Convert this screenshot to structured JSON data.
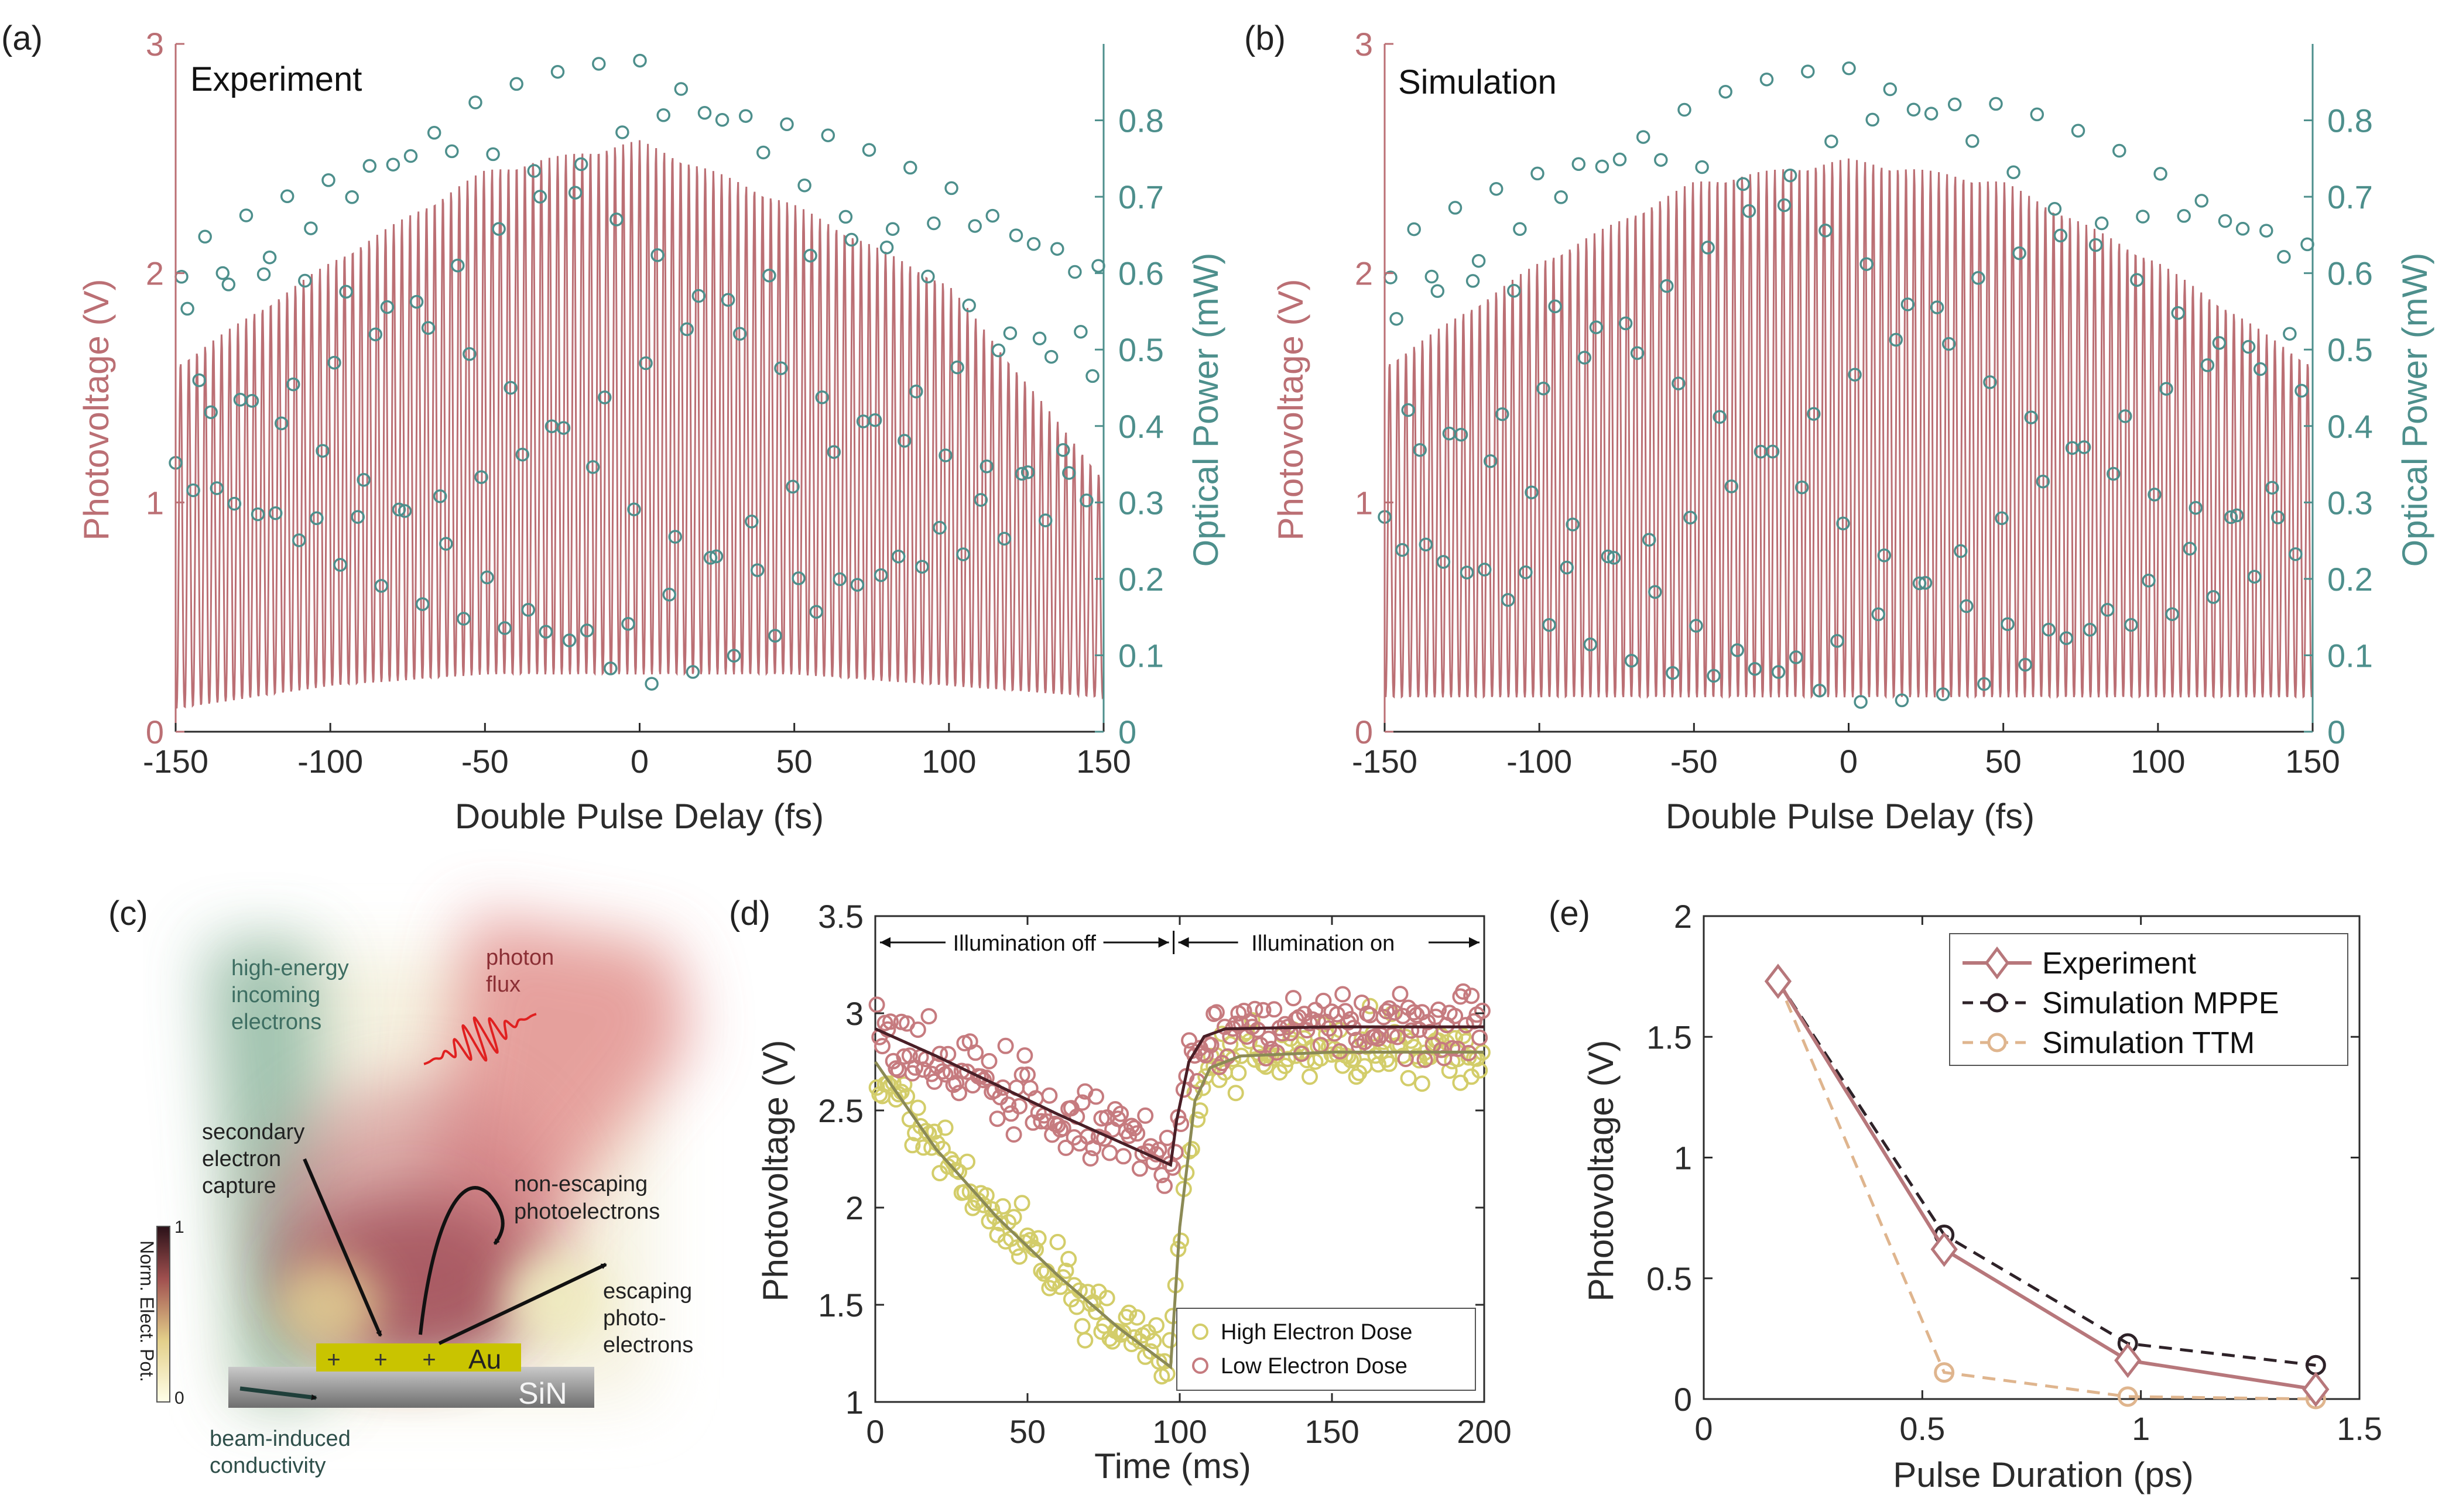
{
  "colors": {
    "photovoltage": "#bb6f74",
    "optical": "#4d8f8c",
    "axis": "#2b2b2b",
    "high_dose": "#d3cd6a",
    "high_dose_fit": "#8b8a55",
    "low_dose": "#c67b7f",
    "low_dose_fit": "#4a1f27",
    "experiment": "#b7777b",
    "mppe": "#2e2228",
    "ttm": "#dfb58e"
  },
  "panel_labels": {
    "a": "(a)",
    "b": "(b)",
    "c": "(c)",
    "d": "(d)",
    "e": "(e)"
  },
  "chart_data": [
    {
      "id": "a",
      "type": "line+scatter",
      "title": "Experiment",
      "xlabel": "Double Pulse Delay (fs)",
      "ylabel_left": "Photovoltage (V)",
      "ylabel_right": "Optical Power (mW)",
      "xlim": [
        -150,
        150
      ],
      "ylim_left": [
        0,
        3
      ],
      "ylim_right": [
        0,
        0.9
      ],
      "xticks": [
        "-150",
        "-100",
        "-50",
        "0",
        "50",
        "100",
        "150"
      ],
      "yticks_left": [
        "0",
        "1",
        "2",
        "3"
      ],
      "yticks_right": [
        "0",
        "0.1",
        "0.2",
        "0.3",
        "0.4",
        "0.5",
        "0.6",
        "0.7",
        "0.8"
      ],
      "oscillation_period_fs": 2.65,
      "photovoltage_envelope": {
        "x": [
          -150,
          -100,
          -50,
          0,
          50,
          100,
          150
        ],
        "max": [
          1.6,
          2.05,
          2.45,
          2.58,
          2.3,
          1.95,
          1.1
        ],
        "min": [
          0.1,
          0.2,
          0.25,
          0.25,
          0.25,
          0.2,
          0.15
        ]
      },
      "optical_envelope": {
        "x": [
          -150,
          -100,
          -50,
          0,
          50,
          100,
          150
        ],
        "max": [
          0.63,
          0.73,
          0.84,
          0.89,
          0.8,
          0.72,
          0.61
        ],
        "min": [
          0.32,
          0.22,
          0.13,
          0.05,
          0.13,
          0.22,
          0.31
        ]
      }
    },
    {
      "id": "b",
      "type": "line+scatter",
      "title": "Simulation",
      "xlabel": "Double Pulse Delay (fs)",
      "ylabel_left": "Photovoltage (V)",
      "ylabel_right": "Optical Power (mW)",
      "xlim": [
        -150,
        150
      ],
      "ylim_left": [
        0,
        3
      ],
      "ylim_right": [
        0,
        0.9
      ],
      "xticks": [
        "-150",
        "-100",
        "-50",
        "0",
        "50",
        "100",
        "150"
      ],
      "yticks_left": [
        "0",
        "1",
        "2",
        "3"
      ],
      "yticks_right": [
        "0",
        "0.1",
        "0.2",
        "0.3",
        "0.4",
        "0.5",
        "0.6",
        "0.7",
        "0.8"
      ],
      "oscillation_period_fs": 2.65,
      "photovoltage_envelope": {
        "x": [
          -150,
          -100,
          -50,
          0,
          50,
          100,
          150
        ],
        "max": [
          1.6,
          2.05,
          2.4,
          2.5,
          2.4,
          2.05,
          1.6
        ],
        "min": [
          0.15,
          0.15,
          0.15,
          0.15,
          0.15,
          0.15,
          0.15
        ]
      },
      "optical_envelope": {
        "x": [
          -150,
          -100,
          -50,
          0,
          50,
          100,
          150
        ],
        "max": [
          0.64,
          0.74,
          0.83,
          0.88,
          0.83,
          0.74,
          0.64
        ],
        "min": [
          0.24,
          0.14,
          0.06,
          0.03,
          0.06,
          0.14,
          0.24
        ]
      }
    },
    {
      "id": "d",
      "type": "scatter+line",
      "xlabel": "Time (ms)",
      "ylabel": "Photovoltage (V)",
      "xlim": [
        0,
        200
      ],
      "ylim": [
        1,
        3.5
      ],
      "xticks": [
        "0",
        "50",
        "100",
        "150",
        "200"
      ],
      "yticks": [
        "1",
        "1.5",
        "2",
        "2.5",
        "3",
        "3.5"
      ],
      "annotations": [
        "Illumination off",
        "Illumination on"
      ],
      "annotation_split_ms": 98,
      "series": [
        {
          "name": "High Electron Dose",
          "fit": {
            "t": [
              0,
              20,
              40,
              60,
              80,
              97,
              100,
              105,
              110,
              120,
              150,
              200
            ],
            "v": [
              2.75,
              2.3,
              1.95,
              1.65,
              1.38,
              1.18,
              1.9,
              2.55,
              2.72,
              2.78,
              2.8,
              2.8
            ]
          },
          "scatter_noise": 0.12
        },
        {
          "name": "Low Electron Dose",
          "fit": {
            "t": [
              0,
              20,
              40,
              60,
              80,
              97,
              99,
              103,
              108,
              115,
              150,
              200
            ],
            "v": [
              2.92,
              2.78,
              2.63,
              2.48,
              2.34,
              2.22,
              2.45,
              2.75,
              2.88,
              2.92,
              2.93,
              2.93
            ]
          },
          "scatter_noise": 0.13
        }
      ]
    },
    {
      "id": "e",
      "type": "line",
      "xlabel": "Pulse Duration (ps)",
      "ylabel": "Photovoltage (V)",
      "xlim": [
        0,
        1.5
      ],
      "ylim": [
        0,
        2
      ],
      "xticks": [
        "0",
        "0.5",
        "1",
        "1.5"
      ],
      "yticks": [
        "0",
        "0.5",
        "1",
        "1.5",
        "2"
      ],
      "series": [
        {
          "name": "Experiment",
          "x": [
            0.17,
            0.55,
            0.97,
            1.4
          ],
          "values": [
            1.73,
            0.62,
            0.16,
            0.04
          ]
        },
        {
          "name": "Simulation MPPE",
          "x": [
            0.17,
            0.55,
            0.97,
            1.4
          ],
          "values": [
            1.73,
            0.68,
            0.23,
            0.14
          ]
        },
        {
          "name": "Simulation TTM",
          "x": [
            0.17,
            0.55,
            0.97,
            1.4
          ],
          "values": [
            1.73,
            0.11,
            0.01,
            0.0
          ]
        }
      ]
    }
  ],
  "diagram_c": {
    "labels": {
      "incoming": [
        "high-energy",
        "incoming",
        "electrons"
      ],
      "photon": [
        "photon",
        "flux"
      ],
      "capture": [
        "secondary",
        "electron",
        "capture"
      ],
      "nonescaping": [
        "non-escaping",
        "photoelectrons"
      ],
      "escaping": [
        "escaping",
        "photo-",
        "electrons"
      ],
      "conductivity": [
        "beam-induced",
        "conductivity"
      ],
      "gold": "Au",
      "substrate": "SiN",
      "charge": "+",
      "colorbar_title": "Norm. Elect. Pot.",
      "colorbar_max": "1",
      "colorbar_min": "0"
    }
  }
}
